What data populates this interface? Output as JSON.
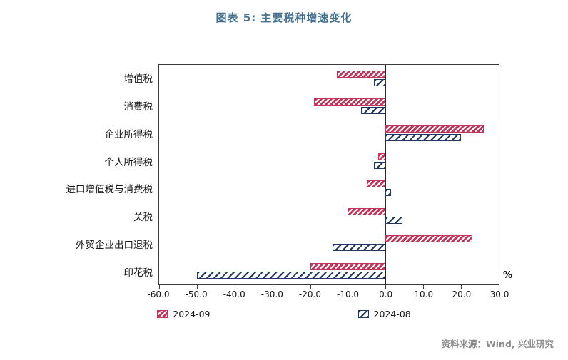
{
  "page": {
    "title": "图表 5:  主要税种增速变化",
    "source": "资料来源：Wind, 兴业研究"
  },
  "chart_data": {
    "type": "bar",
    "orientation": "horizontal",
    "title": "图表 5:  主要税种增速变化",
    "categories": [
      "增值税",
      "消费税",
      "企业所得税",
      "个人所得税",
      "进口增值税与消费税",
      "关税",
      "外贸企业出口退税",
      "印花税"
    ],
    "series": [
      {
        "name": "2024-09",
        "color": "#C2355B",
        "values": [
          -13,
          -19,
          26,
          -2,
          -5,
          -10,
          23,
          -20
        ]
      },
      {
        "name": "2024-08",
        "color": "#1F3864",
        "values": [
          -3,
          -6.5,
          20,
          -3,
          1.5,
          4.5,
          -14,
          -50
        ]
      }
    ],
    "xlim": [
      -60,
      30
    ],
    "xticks": [
      -60,
      -50,
      -40,
      -30,
      -20,
      -10,
      0,
      10,
      20,
      30
    ],
    "xtick_labels": [
      "-60.0",
      "-50.0",
      "-40.0",
      "-30.0",
      "-20.0",
      "-10.0",
      "0.0",
      "10.0",
      "20.0",
      "30.0"
    ],
    "unit_label": "%",
    "grid": false,
    "legend_position": "bottom"
  }
}
